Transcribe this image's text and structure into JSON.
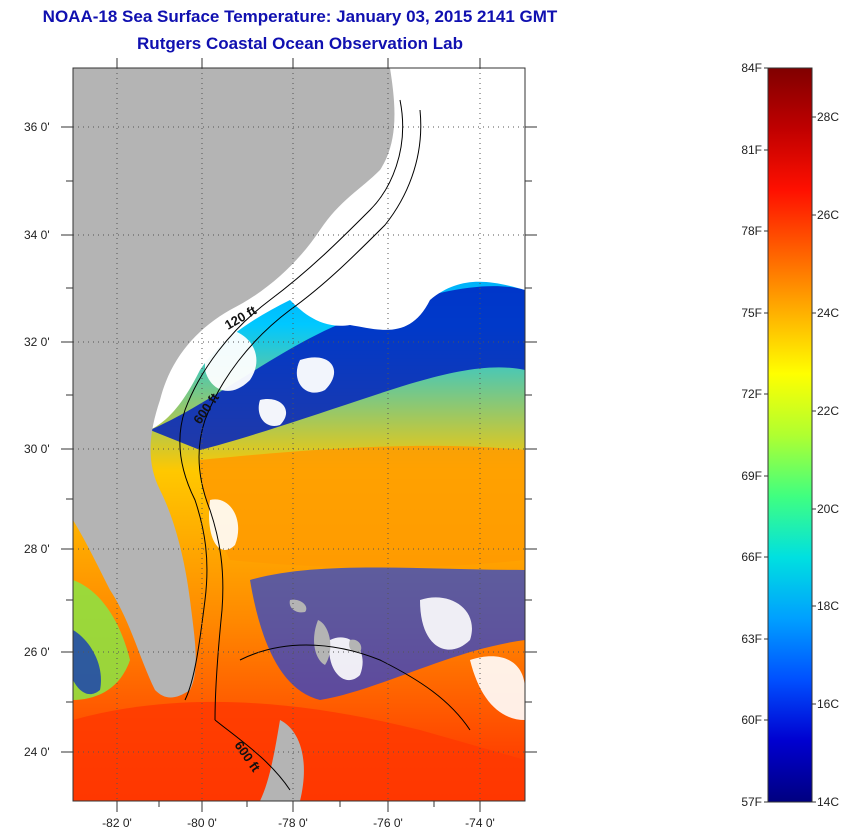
{
  "header": {
    "title": "NOAA-18 Sea Surface Temperature:  January 03, 2015 2141 GMT",
    "subtitle": "Rutgers Coastal Ocean Observation Lab"
  },
  "map": {
    "lat_labels": [
      "36 0'",
      "34 0'",
      "32 0'",
      "30 0'",
      "28 0'",
      "26 0'",
      "24 0'"
    ],
    "lon_labels": [
      "-82 0'",
      "-80 0'",
      "-78 0'",
      "-76 0'",
      "-74 0'"
    ],
    "contour_labels": [
      "120 ft",
      "600 ft",
      "600 ft"
    ],
    "colors": {
      "land": "#b4b4b4",
      "cloud": "#ffffff",
      "grid": "#555555"
    }
  },
  "colorbar": {
    "fahrenheit_labels": [
      "84F",
      "81F",
      "78F",
      "75F",
      "72F",
      "69F",
      "66F",
      "63F",
      "60F",
      "57F"
    ],
    "celsius_labels": [
      "28C",
      "26C",
      "24C",
      "22C",
      "20C",
      "18C",
      "16C",
      "14C"
    ],
    "range_c": [
      14,
      29
    ],
    "colormap": [
      "#000080",
      "#0000d0",
      "#0050ff",
      "#00a0ff",
      "#00e0e0",
      "#40ff80",
      "#b0ff30",
      "#ffff00",
      "#ffb000",
      "#ff6000",
      "#ff1000",
      "#c00000",
      "#800000"
    ]
  }
}
